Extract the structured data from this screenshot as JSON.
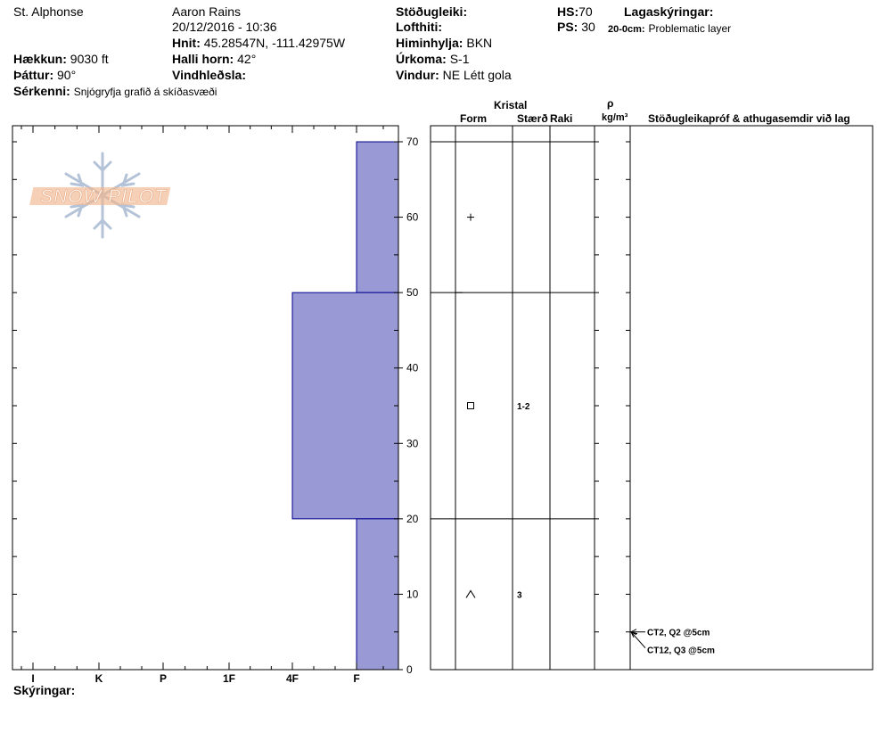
{
  "header": {
    "location": "St. Alphonse",
    "observer": "Aaron Rains",
    "datetime": "20/12/2016 - 10:36",
    "hnit_label": "Hnit:",
    "hnit_value": "45.28547N, -111.42975W",
    "hallihorn_label": "Halli horn:",
    "hallihorn_value": "42°",
    "vindhledsla_label": "Vindhleðsla:",
    "haekkun_label": "Hækkun:",
    "haekkun_value": "9030 ft",
    "thattur_label": "Þáttur:",
    "thattur_value": "90°",
    "serkenni_label": "Sérkenni:",
    "serkenni_value": "Snjógryfja grafið á skíðasvæði",
    "stodugleiki_label": "Stöðugleiki:",
    "lofthiti_label": "Lofthiti:",
    "himinhylja_label": "Himinhylja:",
    "himinhylja_value": "BKN",
    "urkoma_label": "Úrkoma:",
    "urkoma_value": "S-1",
    "vindur_label": "Vindur:",
    "vindur_value": "NE Létt gola",
    "hs_label": "HS:",
    "hs_value": "70",
    "ps_label": "PS:",
    "ps_value": "30",
    "lagaskyringar_label": "Lagaskýringar:",
    "layer_note_depth": "20-0cm:",
    "layer_note_text": "Problematic layer"
  },
  "columns": {
    "kristal": "Kristal",
    "form": "Form",
    "staerd": "Stærð",
    "raki": "Raki",
    "rho": "ρ",
    "density_unit": "kg/m³",
    "stability": "Stöðugleikapróf & athugasemdir við lag"
  },
  "footer": {
    "skyringar_label": "Skýringar:"
  },
  "logo_text": "SNOW PILOT",
  "colors": {
    "hardness_fill": "#9999d6",
    "hardness_stroke": "#00008b",
    "logo": "#f0b58f",
    "flake": "#b5c3d8"
  },
  "chart_data": {
    "type": "bar",
    "orientation": "horizontal",
    "x_categories": [
      "I",
      "K",
      "P",
      "1F",
      "4F",
      "F"
    ],
    "x_hardness_scale": "I=6, K=5, P=4, 1F=3, 4F=2, F=1",
    "y_ticks": [
      "0",
      "10",
      "20",
      "30",
      "40",
      "50",
      "60",
      "70"
    ],
    "ylim": [
      0,
      70
    ],
    "y_unit": "cm",
    "layers": [
      {
        "bottom": 50,
        "top": 70,
        "hardness": "F",
        "hardness_value": 1,
        "form": "+",
        "size": ""
      },
      {
        "bottom": 20,
        "top": 50,
        "hardness": "4F",
        "hardness_value": 2,
        "form": "□",
        "size": "1-2"
      },
      {
        "bottom": 0,
        "top": 20,
        "hardness": "F",
        "hardness_value": 1,
        "form": "∧",
        "size": "3"
      }
    ],
    "tests": [
      {
        "depth": 5,
        "label": "CT2, Q2 @5cm"
      },
      {
        "depth": 5,
        "label": "CT12, Q3 @5cm"
      }
    ]
  }
}
